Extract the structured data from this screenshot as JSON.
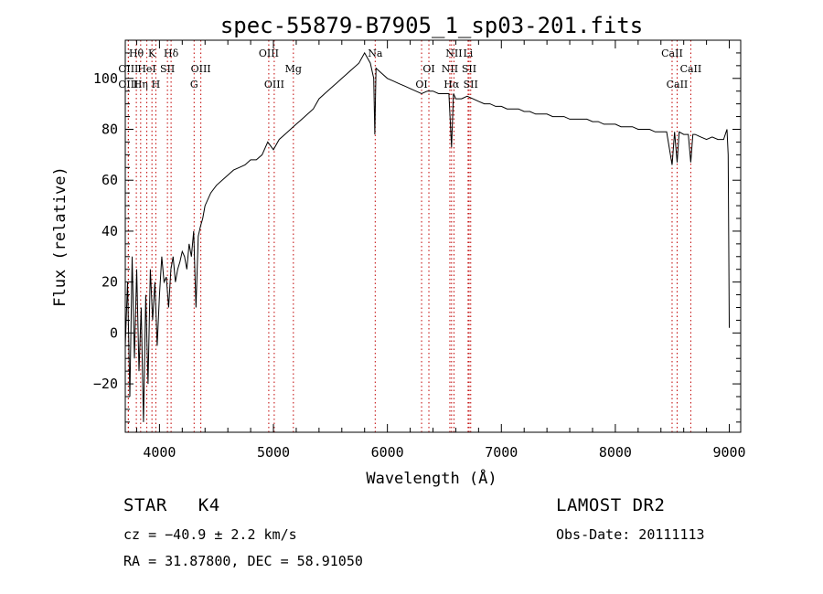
{
  "chart_data": {
    "type": "line",
    "title": "spec-55879-B7905_1_sp03-201.fits",
    "xlabel": "Wavelength (Å)",
    "ylabel": "Flux (relative)",
    "xlim": [
      3700,
      9100
    ],
    "ylim": [
      -39,
      115
    ],
    "x_ticks": [
      4000,
      5000,
      6000,
      7000,
      8000,
      9000
    ],
    "y_ticks": [
      -20,
      0,
      20,
      40,
      60,
      80,
      100
    ],
    "grid": false,
    "series": [
      {
        "x": [
          3700,
          3720,
          3740,
          3760,
          3780,
          3800,
          3820,
          3840,
          3860,
          3880,
          3900,
          3920,
          3940,
          3960,
          3980,
          4000,
          4020,
          4040,
          4060,
          4080,
          4100,
          4120,
          4140,
          4160,
          4180,
          4200,
          4220,
          4240,
          4260,
          4280,
          4300,
          4320,
          4340,
          4360,
          4380,
          4400,
          4450,
          4500,
          4550,
          4600,
          4650,
          4700,
          4750,
          4800,
          4850,
          4900,
          4950,
          5000,
          5050,
          5100,
          5150,
          5200,
          5250,
          5300,
          5350,
          5400,
          5450,
          5500,
          5550,
          5600,
          5650,
          5700,
          5750,
          5800,
          5850,
          5880,
          5890,
          5900,
          5950,
          6000,
          6050,
          6100,
          6150,
          6200,
          6250,
          6300,
          6350,
          6400,
          6450,
          6500,
          6540,
          6563,
          6580,
          6600,
          6650,
          6700,
          6750,
          6800,
          6850,
          6900,
          6950,
          7000,
          7050,
          7100,
          7150,
          7200,
          7250,
          7300,
          7350,
          7400,
          7450,
          7500,
          7550,
          7600,
          7650,
          7700,
          7750,
          7800,
          7850,
          7900,
          7950,
          8000,
          8050,
          8100,
          8150,
          8200,
          8250,
          8300,
          8350,
          8400,
          8450,
          8498,
          8520,
          8542,
          8560,
          8600,
          8640,
          8662,
          8680,
          8700,
          8750,
          8800,
          8850,
          8900,
          8950,
          8980,
          8990,
          9000
        ],
        "y": [
          -5,
          20,
          -25,
          30,
          -10,
          25,
          -15,
          10,
          -35,
          15,
          -20,
          25,
          5,
          20,
          -5,
          15,
          30,
          20,
          22,
          10,
          25,
          30,
          20,
          25,
          28,
          32,
          30,
          25,
          35,
          30,
          40,
          10,
          38,
          42,
          45,
          50,
          55,
          58,
          60,
          62,
          64,
          65,
          66,
          68,
          68,
          70,
          75,
          72,
          76,
          78,
          80,
          82,
          84,
          86,
          88,
          92,
          94,
          96,
          98,
          100,
          102,
          104,
          106,
          110,
          106,
          100,
          78,
          104,
          102,
          100,
          99,
          98,
          97,
          96,
          95,
          94,
          95,
          95,
          94,
          94,
          94,
          73,
          94,
          92,
          92,
          93,
          92,
          91,
          90,
          90,
          89,
          89,
          88,
          88,
          88,
          87,
          87,
          86,
          86,
          86,
          85,
          85,
          85,
          84,
          84,
          84,
          84,
          83,
          83,
          82,
          82,
          82,
          81,
          81,
          81,
          80,
          80,
          80,
          79,
          79,
          79,
          66,
          79,
          67,
          79,
          78,
          78,
          67,
          78,
          78,
          77,
          76,
          77,
          76,
          76,
          80,
          70,
          2
        ]
      }
    ],
    "line_markers": [
      {
        "label": "Hθ",
        "x": 3797,
        "row": 1
      },
      {
        "label": "K",
        "x": 3934,
        "row": 1
      },
      {
        "label": "Hδ",
        "x": 4102,
        "row": 1
      },
      {
        "label": "OIII",
        "x": 3727,
        "row": 2
      },
      {
        "label": "HeI",
        "x": 3889,
        "row": 2
      },
      {
        "label": "SII",
        "x": 4070,
        "row": 2
      },
      {
        "label": "OIII",
        "x": 4363,
        "row": 2
      },
      {
        "label": "OIII",
        "x": 3727,
        "row": 3
      },
      {
        "label": "Hη",
        "x": 3835,
        "row": 3
      },
      {
        "label": "H",
        "x": 3968,
        "row": 3
      },
      {
        "label": "G",
        "x": 4304,
        "row": 3
      },
      {
        "label": "OIII",
        "x": 4959,
        "row": 1
      },
      {
        "label": "Mg",
        "x": 5175,
        "row": 2
      },
      {
        "label": "OIII",
        "x": 5007,
        "row": 3
      },
      {
        "label": "Na",
        "x": 5893,
        "row": 1
      },
      {
        "label": "NII",
        "x": 6584,
        "row": 1
      },
      {
        "label": "Li",
        "x": 6708,
        "row": 1
      },
      {
        "label": "OI",
        "x": 6364,
        "row": 2
      },
      {
        "label": "NII",
        "x": 6548,
        "row": 2
      },
      {
        "label": "SII",
        "x": 6717,
        "row": 2
      },
      {
        "label": "OI",
        "x": 6300,
        "row": 3
      },
      {
        "label": "Hα",
        "x": 6563,
        "row": 3
      },
      {
        "label": "SII",
        "x": 6731,
        "row": 3
      },
      {
        "label": "CaII",
        "x": 8498,
        "row": 1
      },
      {
        "label": "CaII",
        "x": 8662,
        "row": 2
      },
      {
        "label": "CaII",
        "x": 8542,
        "row": 3
      }
    ],
    "marker_color": "#c00000"
  },
  "info": {
    "object_class": "STAR",
    "subclass": "K4",
    "survey": "LAMOST DR2",
    "redshift": "cz = −40.9 ± 2.2 km/s",
    "obs_date": "Obs-Date: 20111113",
    "coords": "RA =  31.87800, DEC =  58.91050"
  }
}
